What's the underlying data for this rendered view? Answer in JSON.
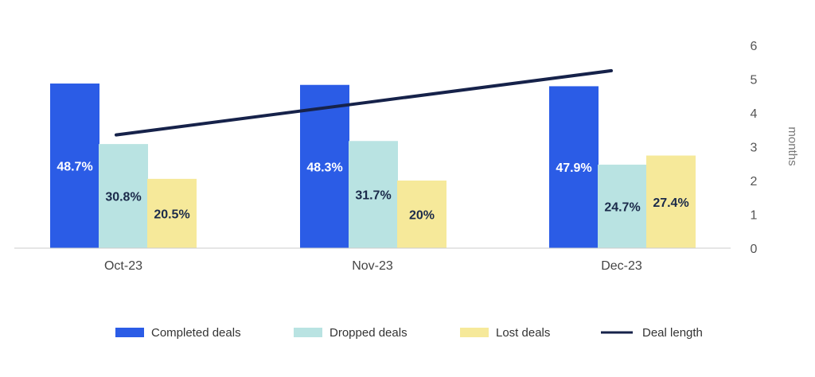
{
  "chart_data": {
    "type": "bar",
    "categories": [
      "Oct-23",
      "Nov-23",
      "Dec-23"
    ],
    "series": [
      {
        "name": "Completed deals",
        "color": "#2B5CE6",
        "label_color": "#ffffff",
        "values": [
          48.7,
          48.3,
          47.9
        ],
        "labels": [
          "48.7%",
          "48.3%",
          "47.9%"
        ]
      },
      {
        "name": "Dropped deals",
        "color": "#B9E3E2",
        "label_color": "#1B2A4A",
        "values": [
          30.8,
          31.7,
          24.7
        ],
        "labels": [
          "30.8%",
          "31.7%",
          "24.7%"
        ]
      },
      {
        "name": "Lost deals",
        "color": "#F6E99A",
        "label_color": "#1B2A4A",
        "values": [
          20.5,
          20.0,
          27.4
        ],
        "labels": [
          "20.5%",
          "20%",
          "27.4%"
        ]
      }
    ],
    "line_series": {
      "name": "Deal length",
      "color": "#16224A",
      "values": [
        3.35,
        4.3,
        5.25
      ]
    },
    "y2_axis": {
      "label": "months",
      "ticks": [
        "0",
        "1",
        "2",
        "3",
        "4",
        "5",
        "6"
      ],
      "range": [
        0,
        6
      ]
    },
    "bar_value_range": [
      0,
      60
    ],
    "legend_position": "bottom"
  }
}
